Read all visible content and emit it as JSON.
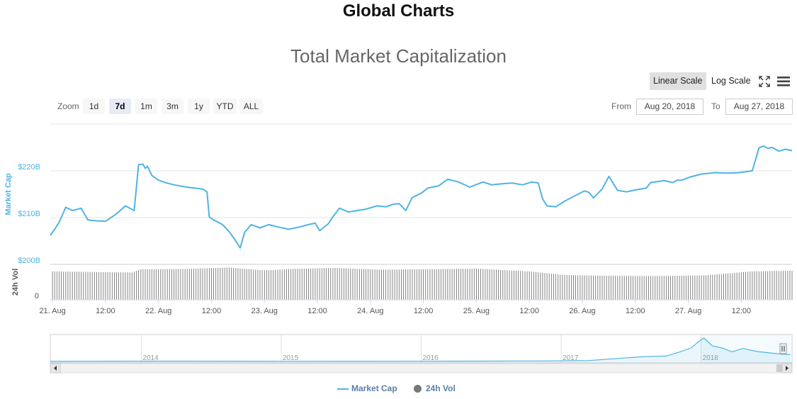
{
  "page": {
    "title": "Global Charts"
  },
  "chart_data": {
    "type": "line",
    "title": "Total Market Capitalization",
    "scale_options": [
      "Linear Scale",
      "Log Scale"
    ],
    "active_scale": "Linear Scale",
    "zoom": {
      "label": "Zoom",
      "buttons": [
        "1d",
        "7d",
        "1m",
        "3m",
        "1y",
        "YTD",
        "ALL"
      ],
      "active": "7d"
    },
    "range": {
      "from_label": "From",
      "from": "Aug 20, 2018",
      "to_label": "To",
      "to": "Aug 27, 2018"
    },
    "x_tick_labels": [
      "21. Aug",
      "12:00",
      "22. Aug",
      "12:00",
      "23. Aug",
      "12:00",
      "24. Aug",
      "12:00",
      "25. Aug",
      "12:00",
      "26. Aug",
      "12:00",
      "27. Aug",
      "12:00"
    ],
    "x_ticks_hours": [
      0,
      12,
      24,
      36,
      48,
      60,
      72,
      84,
      96,
      108,
      120,
      132,
      144,
      156
    ],
    "x_range_hours": [
      -0.5,
      167.5
    ],
    "y_axis": {
      "label": "Market Cap",
      "ticks": [
        "$200B",
        "$210B",
        "$220B"
      ],
      "tick_values": [
        200,
        210,
        220
      ],
      "range": [
        200,
        230
      ],
      "unit": "B USD"
    },
    "volume_axis": {
      "label": "24h Vol",
      "ticks": [
        "0"
      ]
    },
    "series": [
      {
        "name": "Market Cap",
        "color": "#4fb3e3",
        "x_hours": [
          -0.5,
          0.5,
          1.5,
          3,
          4.5,
          6.5,
          8,
          10,
          12,
          14.5,
          16.5,
          18.5,
          19.5,
          20.5,
          21,
          21.5,
          22.5,
          24,
          25.5,
          27.5,
          30.5,
          34,
          35,
          35.5,
          36.5,
          38.5,
          40,
          41.5,
          42.5,
          43.5,
          45,
          47,
          49,
          51,
          53.5,
          56,
          58,
          59.5,
          60.5,
          62.5,
          63.5,
          65,
          67,
          69,
          71,
          73.5,
          75.5,
          77,
          78.5,
          80,
          81.5,
          83.5,
          85,
          87.5,
          89.5,
          92,
          94.5,
          97.5,
          99.5,
          101.5,
          104,
          106.5,
          108.5,
          110,
          111,
          112,
          114,
          116,
          118,
          120.5,
          121.5,
          122.5,
          124.5,
          126,
          128,
          130,
          132.5,
          134.5,
          135.5,
          136.5,
          138.5,
          140.5,
          141.5,
          142.5,
          144.5,
          147,
          150,
          153,
          155.5,
          158.5,
          160,
          161,
          162,
          163,
          164.5,
          166,
          167.5
        ],
        "values": [
          206.2,
          207.5,
          209,
          212.2,
          211.5,
          212,
          209.5,
          209.3,
          209.2,
          210.8,
          212.5,
          211.5,
          221.3,
          221.4,
          220.5,
          221,
          219,
          218,
          217.5,
          217,
          216.5,
          216.1,
          215.5,
          210.1,
          209.5,
          208.5,
          207,
          205,
          203.5,
          206.8,
          208.5,
          207.8,
          208.5,
          208,
          207.5,
          208,
          208.5,
          208.8,
          207.2,
          208.7,
          210.2,
          212,
          211.2,
          211.5,
          211.8,
          212.5,
          212.3,
          212.8,
          213,
          211.5,
          214.3,
          215.2,
          216.3,
          216.8,
          218.2,
          217.6,
          216.5,
          217.6,
          217,
          217.2,
          217.4,
          217,
          217.6,
          217.4,
          214,
          212.5,
          212.3,
          213.5,
          214.5,
          215.7,
          215.4,
          214.2,
          216.1,
          218.8,
          215.8,
          215.5,
          216,
          216.3,
          217.5,
          217.6,
          217.9,
          217.5,
          218,
          218,
          218.7,
          219.3,
          219.6,
          219.5,
          219.6,
          220,
          224.9,
          225.3,
          224.8,
          225,
          224.2,
          224.6,
          224.3
        ]
      },
      {
        "name": "24h Vol",
        "color": "#555555",
        "type": "column",
        "relative_values_hours": [
          0,
          18,
          20,
          30,
          40,
          48,
          54,
          64,
          74,
          84,
          96,
          108,
          116,
          124,
          136,
          148,
          158,
          167
        ],
        "relative_values": [
          0.8,
          0.77,
          0.86,
          0.87,
          0.91,
          0.83,
          0.87,
          0.9,
          0.85,
          0.86,
          0.88,
          0.8,
          0.7,
          0.68,
          0.67,
          0.69,
          0.8,
          0.82
        ]
      }
    ],
    "navigator": {
      "years": [
        "2014",
        "2015",
        "2016",
        "2017",
        "2018"
      ],
      "x_range_years": [
        2013.35,
        2018.65
      ],
      "x_years": [
        2013.35,
        2014.0,
        2015.0,
        2016.0,
        2016.9,
        2017.2,
        2017.4,
        2017.6,
        2017.75,
        2017.85,
        2017.93,
        2017.98,
        2018.02,
        2018.08,
        2018.15,
        2018.22,
        2018.3,
        2018.4,
        2018.5,
        2018.58,
        2018.64
      ],
      "values": [
        1.5,
        10,
        4,
        7,
        17,
        30,
        100,
        160,
        180,
        320,
        450,
        650,
        780,
        520,
        450,
        320,
        430,
        330,
        280,
        240,
        230
      ]
    },
    "legend": {
      "position": "bottom-center",
      "items": [
        "Market Cap",
        "24h Vol"
      ]
    },
    "grid": true
  }
}
